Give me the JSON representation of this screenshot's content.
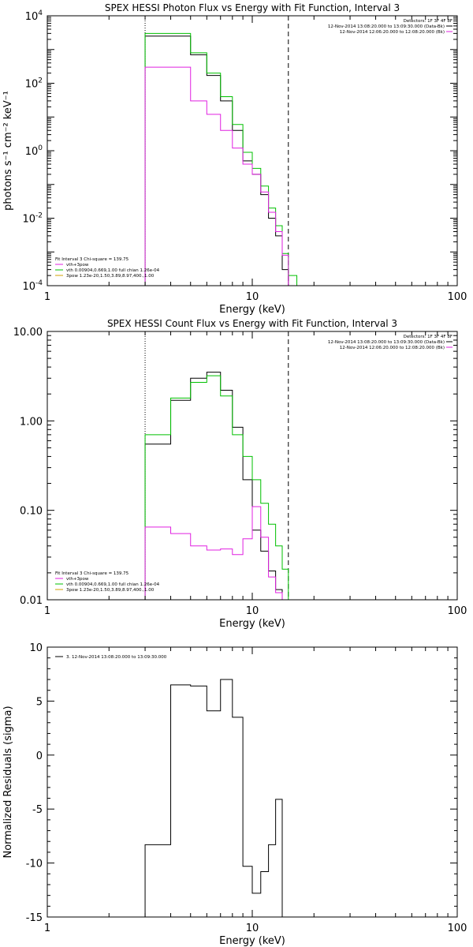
{
  "chart_data": [
    {
      "type": "line",
      "title": "SPEX HESSI Photon Flux vs Energy with Fit Function, Interval 3",
      "xlabel": "Energy (keV)",
      "ylabel": "photons s⁻¹ cm⁻² keV⁻¹",
      "xscale": "log",
      "yscale": "log",
      "xlim": [
        1,
        100
      ],
      "ylim": [
        0.0001,
        10000
      ],
      "xticks": [
        {
          "v": 1,
          "label": "1"
        },
        {
          "v": 10,
          "label": "10"
        },
        {
          "v": 100,
          "label": "100"
        }
      ],
      "yticks": [
        {
          "v": 0.0001,
          "base": "10",
          "exp": "-4"
        },
        {
          "v": 0.01,
          "base": "10",
          "exp": "-2"
        },
        {
          "v": 1,
          "base": "10",
          "exp": "0"
        },
        {
          "v": 100,
          "base": "10",
          "exp": "2"
        },
        {
          "v": 10000,
          "base": "10",
          "exp": "4"
        }
      ],
      "vlines": [
        {
          "x": 3.0,
          "style": "dotted"
        },
        {
          "x": 15.0,
          "style": "dashed"
        }
      ],
      "legend_right": {
        "header": "Detectors: 1F 3F 4F 8F",
        "entries": [
          {
            "text": "12-Nov-2014 13:08:20.000 to 13:09:30.000 (Data-Bk)",
            "color": "#000000"
          },
          {
            "text": "12-Nov-2014 12:06:20.000 to 12:08:20.000 (Bk)",
            "color": "#e020e0"
          }
        ]
      },
      "legend_left": {
        "header": "Fit Interval 3   Chi-square = 139.75",
        "entries": [
          {
            "text": "vth+3pow",
            "color": "#e020e0"
          },
          {
            "text": "vth 0.00904,0.669,1.00  full chian 1.26e-04",
            "color": "#00c000"
          },
          {
            "text": "3pow 1.23e-20,1.50,3.89,8.97,400.,1.00",
            "color": "#d0a000"
          }
        ]
      },
      "series": [
        {
          "color": "#000000",
          "edges": [
            3.0,
            4.0,
            5.0,
            6.0,
            7.0,
            8.0,
            9.0,
            10.0,
            11.0,
            12.0,
            13.0,
            14.0,
            15.0
          ],
          "values": [
            2500,
            2500,
            700,
            170,
            30,
            4,
            0.5,
            0.2,
            0.05,
            0.01,
            0.003,
            0.0003
          ]
        },
        {
          "color": "#00c000",
          "edges": [
            3.0,
            4.0,
            5.0,
            6.0,
            7.0,
            8.0,
            9.0,
            10.0,
            11.0,
            12.0,
            13.0,
            14.0,
            15.0,
            16.5,
            18.0
          ],
          "values": [
            3000,
            3000,
            800,
            200,
            40,
            6,
            0.9,
            0.3,
            0.09,
            0.02,
            0.006,
            0.0009,
            0.0002,
            0.0001
          ]
        },
        {
          "color": "#e020e0",
          "edges": [
            3.0,
            4.0,
            5.0,
            6.0,
            7.0,
            8.0,
            9.0,
            10.0,
            11.0,
            12.0,
            13.0,
            14.0,
            15.0
          ],
          "values": [
            300,
            300,
            30,
            12,
            4,
            1.2,
            0.4,
            0.2,
            0.06,
            0.015,
            0.004,
            0.0008
          ]
        }
      ]
    },
    {
      "type": "line",
      "title": "SPEX HESSI Count Flux vs Energy with Fit Function, Interval 3",
      "xlabel": "Energy (keV)",
      "ylabel": "",
      "xscale": "log",
      "yscale": "log",
      "xlim": [
        1,
        100
      ],
      "ylim": [
        0.01,
        10
      ],
      "xticks": [
        {
          "v": 1,
          "label": "1"
        },
        {
          "v": 10,
          "label": "10"
        },
        {
          "v": 100,
          "label": "100"
        }
      ],
      "yticks": [
        {
          "v": 0.01,
          "label": "0.01"
        },
        {
          "v": 0.1,
          "label": "0.10"
        },
        {
          "v": 1,
          "label": "1.00"
        },
        {
          "v": 10,
          "label": "10.00"
        }
      ],
      "vlines": [
        {
          "x": 3.0,
          "style": "dotted"
        },
        {
          "x": 15.0,
          "style": "dashed"
        }
      ],
      "legend_right": {
        "header": "Detectors: 1F 3F 4F 8F",
        "entries": [
          {
            "text": "12-Nov-2014 13:08:20.000 to 13:09:30.000 (Data-Bk)",
            "color": "#000000"
          },
          {
            "text": "12-Nov-2014 12:06:20.000 to 12:08:20.000 (Bk)",
            "color": "#e020e0"
          }
        ]
      },
      "legend_left": {
        "header": "Fit Interval 3   Chi-square = 139.75",
        "entries": [
          {
            "text": "vth+3pow",
            "color": "#e020e0"
          },
          {
            "text": "vth 0.00904,0.669,1.00  full chian 1.26e-04",
            "color": "#00c000"
          },
          {
            "text": "3pow 1.23e-20,1.50,3.89,8.97,400.,1.00",
            "color": "#d0a000"
          }
        ]
      },
      "series": [
        {
          "color": "#000000",
          "edges": [
            3.0,
            4.0,
            5.0,
            6.0,
            7.0,
            8.0,
            9.0,
            10.0,
            11.0,
            12.0,
            13.0,
            14.0,
            15.0
          ],
          "values": [
            0.55,
            1.7,
            3.0,
            3.5,
            2.2,
            0.85,
            0.22,
            0.06,
            0.035,
            0.021,
            0.013,
            0.01
          ]
        },
        {
          "color": "#00c000",
          "edges": [
            3.0,
            4.0,
            5.0,
            6.0,
            7.0,
            8.0,
            9.0,
            10.0,
            11.0,
            12.0,
            13.0,
            14.0,
            15.0,
            16.0
          ],
          "values": [
            0.7,
            1.8,
            2.7,
            3.2,
            1.9,
            0.7,
            0.4,
            0.22,
            0.12,
            0.07,
            0.04,
            0.022,
            0.01
          ]
        },
        {
          "color": "#e020e0",
          "edges": [
            3.0,
            4.0,
            5.0,
            6.0,
            7.0,
            8.0,
            9.0,
            10.0,
            11.0,
            12.0,
            13.0,
            14.0,
            15.0
          ],
          "values": [
            0.065,
            0.055,
            0.04,
            0.036,
            0.037,
            0.032,
            0.048,
            0.11,
            0.05,
            0.018,
            0.012,
            0.01
          ]
        }
      ]
    },
    {
      "type": "line",
      "title": "",
      "xlabel": "Energy (keV)",
      "ylabel": "Normalized Residuals (sigma)",
      "xscale": "log",
      "yscale": "linear",
      "xlim": [
        1,
        100
      ],
      "ylim": [
        -15,
        10
      ],
      "xticks": [
        {
          "v": 1,
          "label": "1"
        },
        {
          "v": 10,
          "label": "10"
        },
        {
          "v": 100,
          "label": "100"
        }
      ],
      "yticks": [
        {
          "v": -15,
          "label": "-15"
        },
        {
          "v": -10,
          "label": "-10"
        },
        {
          "v": -5,
          "label": "-5"
        },
        {
          "v": 0,
          "label": "0"
        },
        {
          "v": 5,
          "label": "5"
        },
        {
          "v": 10,
          "label": "10"
        }
      ],
      "legend_left": {
        "header": "",
        "entries": [
          {
            "text": "3. 12-Nov-2014 13:08:20.000 to 13:09:30.000",
            "color": "#000000"
          }
        ]
      },
      "series": [
        {
          "color": "#000000",
          "edges": [
            3.0,
            4.0,
            5.0,
            6.0,
            7.0,
            8.0,
            9.0,
            10.0,
            11.0,
            12.0,
            13.0,
            14.0,
            15.0
          ],
          "values": [
            -8.3,
            6.5,
            6.4,
            4.1,
            7.0,
            3.5,
            -10.3,
            -12.8,
            -10.8,
            -8.3,
            -4.1,
            -15.0
          ],
          "drop_to_floor": true
        }
      ]
    }
  ]
}
